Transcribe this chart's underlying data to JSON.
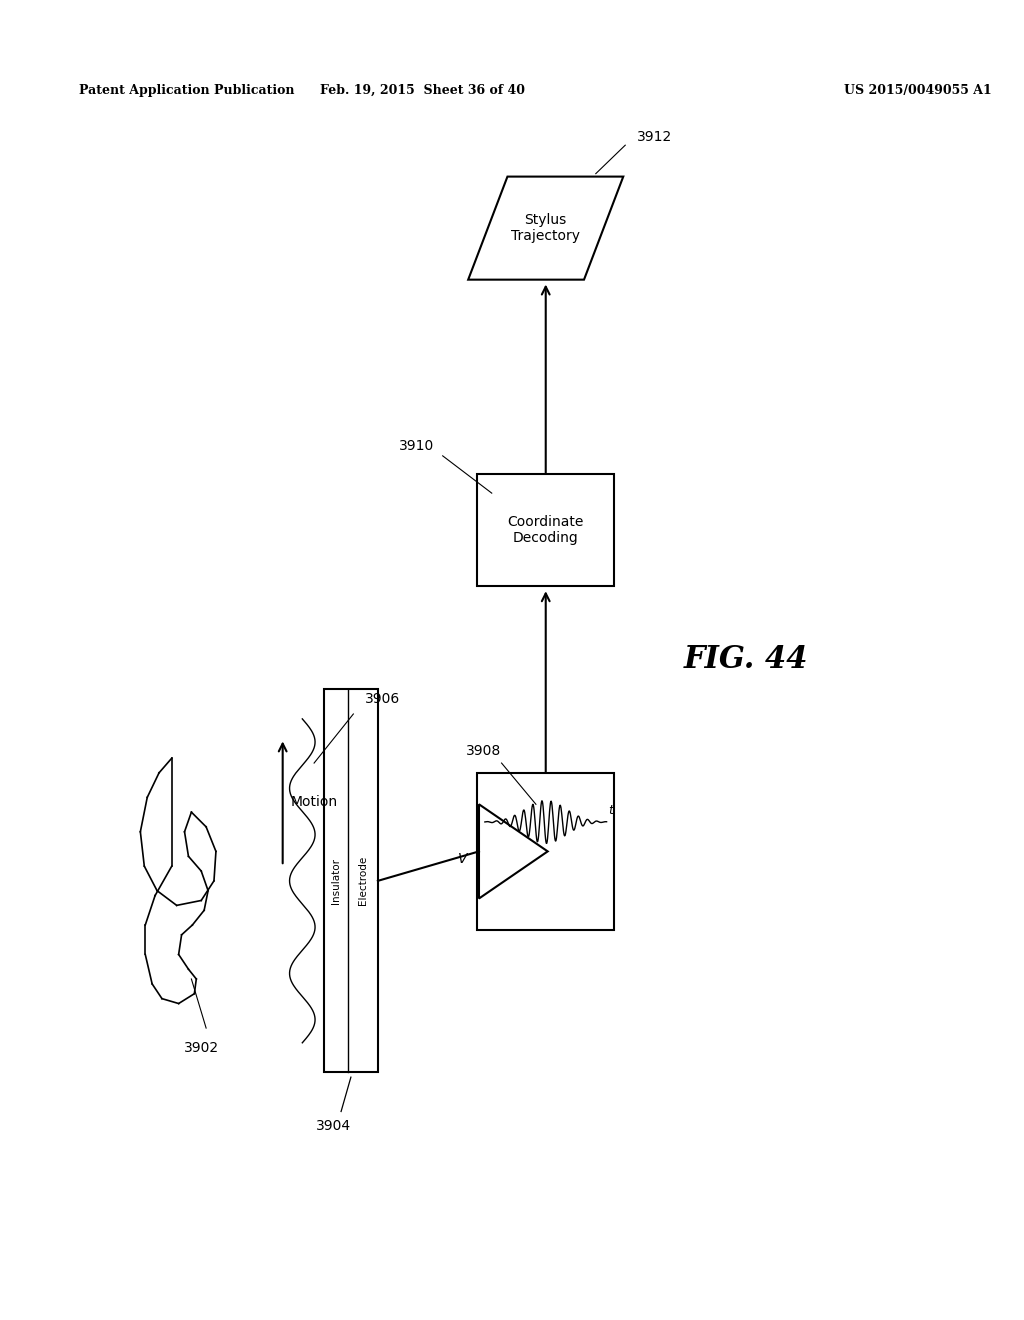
{
  "header_left": "Patent Application Publication",
  "header_center": "Feb. 19, 2015  Sheet 36 of 40",
  "header_right": "US 2015/0049055 A1",
  "fig_label": "FIG. 44",
  "bg_color": "#ffffff",
  "line_color": "#000000",
  "ref3902": "3902",
  "ref3904": "3904",
  "ref3906": "3906",
  "ref3908": "3908",
  "ref3910": "3910",
  "ref3912": "3912",
  "label_insulator": "Insulator",
  "label_electrode": "Electrode",
  "label_coord": "Coordinate\nDecoding",
  "label_stylus_traj": "Stylus\nTrajectory",
  "label_motion": "Motion",
  "label_v": "V",
  "label_t": "t"
}
